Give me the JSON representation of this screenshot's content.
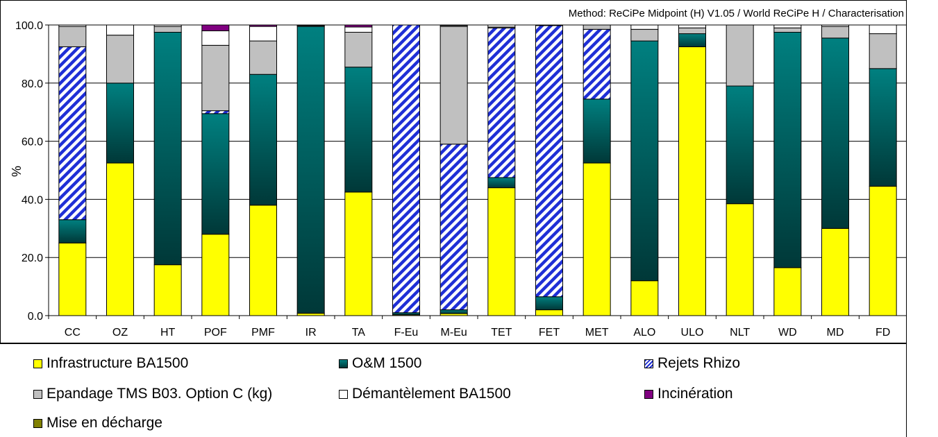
{
  "chart_data": {
    "type": "bar",
    "stacked": true,
    "title": "Method: ReCiPe Midpoint (H) V1.05 / World ReCiPe H / Characterisation",
    "xlabel": "",
    "ylabel": "%",
    "ylim": [
      0,
      100
    ],
    "yticks": [
      "0.0",
      "20.0",
      "40.0",
      "60.0",
      "80.0",
      "100.0"
    ],
    "grid": true,
    "legend_position": "bottom",
    "categories": [
      "CC",
      "OZ",
      "HT",
      "POF",
      "PMF",
      "IR",
      "TA",
      "F-Eu",
      "M-Eu",
      "TET",
      "FET",
      "MET",
      "ALO",
      "ULO",
      "NLT",
      "WD",
      "MD",
      "FD"
    ],
    "series": [
      {
        "name": "Infrastructure BA1500",
        "color": "#ffff00",
        "pattern": "solid",
        "values": [
          25.0,
          52.5,
          17.5,
          28.0,
          38.0,
          0.8,
          42.5,
          0.3,
          0.7,
          44.0,
          2.0,
          52.5,
          12.0,
          92.5,
          38.5,
          16.5,
          30.0,
          44.5
        ]
      },
      {
        "name": "O&M 1500",
        "color": "#006666",
        "pattern": "gradient",
        "values": [
          8.0,
          27.5,
          80.0,
          41.5,
          45.0,
          98.7,
          43.0,
          0.7,
          1.3,
          3.5,
          4.5,
          22.0,
          82.5,
          4.5,
          40.5,
          81.0,
          65.5,
          40.5
        ]
      },
      {
        "name": "Rejets Rhizo",
        "color": "#1f2fd6",
        "pattern": "hatch",
        "values": [
          59.5,
          0,
          0,
          1.0,
          0,
          0,
          0,
          99.0,
          57.0,
          51.5,
          93.3,
          24.0,
          0,
          0,
          0,
          0,
          0,
          0
        ]
      },
      {
        "name": "Epandage TMS B03. Option C (kg)",
        "color": "#c0c0c0",
        "pattern": "solid",
        "values": [
          7.0,
          16.5,
          2.0,
          22.5,
          11.5,
          0.3,
          12.0,
          0,
          40.5,
          0.3,
          0,
          1.5,
          4.0,
          2.0,
          21.0,
          1.5,
          4.0,
          12.0
        ]
      },
      {
        "name": "Démantèlement BA1500",
        "color": "#ffffff",
        "pattern": "solid",
        "values": [
          0.5,
          3.5,
          0.5,
          5.0,
          5.0,
          0.2,
          1.8,
          0,
          0.3,
          0.7,
          0.2,
          0,
          1.5,
          1.0,
          0,
          1.0,
          0.5,
          3.0
        ]
      },
      {
        "name": "Incinération",
        "color": "#800080",
        "pattern": "solid",
        "values": [
          0,
          0,
          0,
          2.0,
          0.5,
          0,
          0.7,
          0,
          0,
          0,
          0,
          0,
          0,
          0,
          0,
          0,
          0,
          0
        ]
      },
      {
        "name": "Mise en décharge",
        "color": "#808000",
        "pattern": "solid",
        "values": [
          0,
          0,
          0,
          0,
          0,
          0,
          0,
          0,
          0,
          0,
          0,
          0,
          0,
          0,
          0,
          0,
          0,
          0
        ]
      }
    ]
  }
}
